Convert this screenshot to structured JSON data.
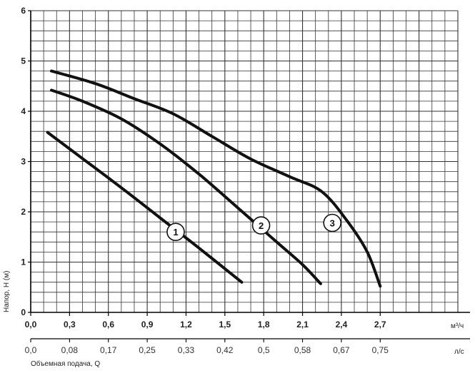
{
  "chart_data": {
    "type": "line",
    "xlabel_primary_unit": "м³/ч",
    "xlabel_secondary_unit": "л/с",
    "xlabel": "Объемная подача, Q",
    "ylabel": "Напор, H (м)",
    "xlim": [
      0,
      3.3
    ],
    "ylim": [
      0,
      6
    ],
    "grid": true,
    "x_ticks": [
      "0,0",
      "0,3",
      "0,6",
      "0,9",
      "1,2",
      "1,5",
      "1,8",
      "2,1",
      "2,4",
      "2,7"
    ],
    "x_tick_values": [
      0,
      0.3,
      0.6,
      0.9,
      1.2,
      1.5,
      1.8,
      2.1,
      2.4,
      2.7
    ],
    "x2_ticks": [
      "0,0",
      "0,08",
      "0,17",
      "0,25",
      "0,33",
      "0,42",
      "0,5",
      "0,58",
      "0,67",
      "0,75"
    ],
    "y_ticks": [
      "0",
      "1",
      "2",
      "3",
      "4",
      "5",
      "6"
    ],
    "y_tick_values": [
      0,
      1,
      2,
      3,
      4,
      5,
      6
    ],
    "series": [
      {
        "name": "1",
        "label_at": [
          1.12,
          1.6
        ],
        "points": [
          [
            0.13,
            3.58
          ],
          [
            0.4,
            3.06
          ],
          [
            0.7,
            2.48
          ],
          [
            1.0,
            1.88
          ],
          [
            1.3,
            1.28
          ],
          [
            1.63,
            0.6
          ]
        ]
      },
      {
        "name": "2",
        "label_at": [
          1.78,
          1.73
        ],
        "points": [
          [
            0.16,
            4.42
          ],
          [
            0.4,
            4.2
          ],
          [
            0.7,
            3.85
          ],
          [
            1.0,
            3.35
          ],
          [
            1.3,
            2.75
          ],
          [
            1.6,
            2.08
          ],
          [
            1.9,
            1.4
          ],
          [
            2.1,
            0.95
          ],
          [
            2.24,
            0.57
          ]
        ]
      },
      {
        "name": "3",
        "label_at": [
          2.33,
          1.78
        ],
        "points": [
          [
            0.16,
            4.8
          ],
          [
            0.5,
            4.55
          ],
          [
            0.8,
            4.25
          ],
          [
            1.1,
            3.95
          ],
          [
            1.4,
            3.5
          ],
          [
            1.7,
            3.05
          ],
          [
            2.0,
            2.7
          ],
          [
            2.25,
            2.4
          ],
          [
            2.45,
            1.8
          ],
          [
            2.6,
            1.2
          ],
          [
            2.7,
            0.52
          ]
        ]
      }
    ]
  }
}
